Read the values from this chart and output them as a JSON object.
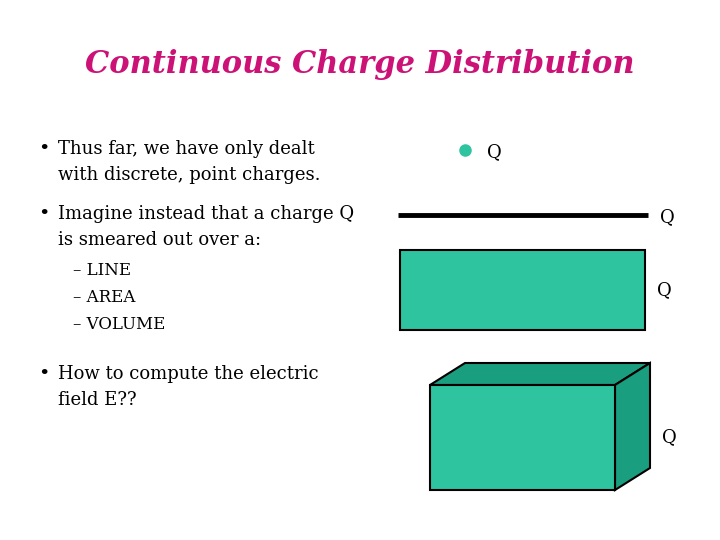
{
  "title": "Continuous Charge Distribution",
  "title_color": "#CC1177",
  "title_fontsize": 22,
  "bg_color": "#FFFFFF",
  "bullet_color": "#000000",
  "bullet_fontsize": 13,
  "teal_color": "#2EC4A0",
  "teal_dark": "#1A9E80",
  "dot_color": "#2EC4A0",
  "line_color": "#000000",
  "sub_bullets": [
    "LINE",
    "AREA",
    "VOLUME"
  ],
  "fig_w": 7.2,
  "fig_h": 5.4,
  "dpi": 100
}
